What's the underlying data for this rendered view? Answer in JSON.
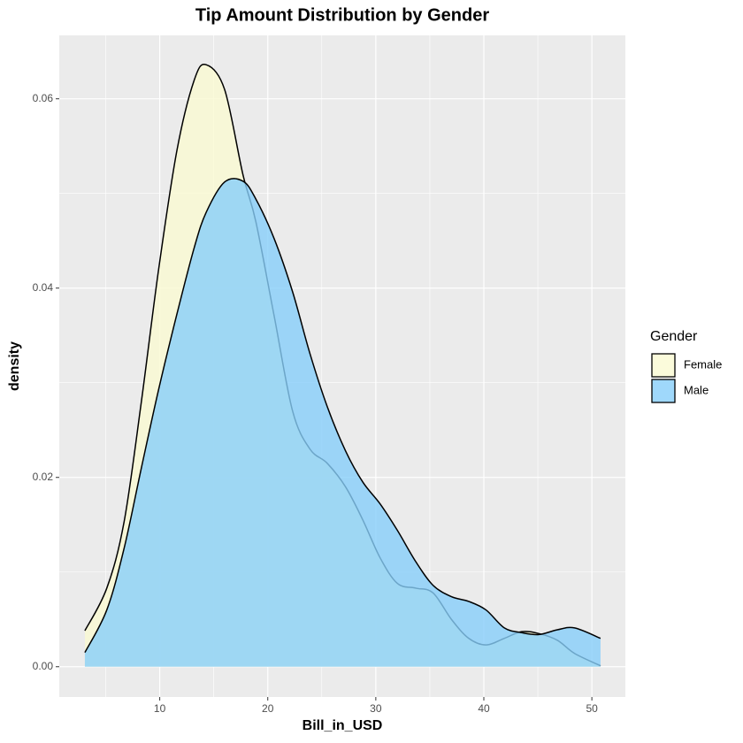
{
  "chart_data": {
    "type": "density",
    "title": "Tip Amount Distribution by Gender",
    "x_label": "Bill_in_USD",
    "y_label": "density",
    "legend_title": "Gender",
    "legend_position": "right",
    "x": [
      3.07,
      5.1,
      6.7,
      8.3,
      9.9,
      11.6,
      13.2,
      14.3,
      16,
      17.7,
      18.9,
      20.6,
      22.3,
      23.9,
      25.5,
      27.2,
      28.8,
      30.4,
      32,
      33.7,
      35.3,
      37,
      38.6,
      40.2,
      41.9,
      43.5,
      45.1,
      46.8,
      48.4,
      50.8
    ],
    "series": [
      {
        "name": "Female",
        "color": "#FAFAD2",
        "values": [
          0.0038,
          0.0083,
          0.0153,
          0.028,
          0.042,
          0.0546,
          0.062,
          0.0636,
          0.061,
          0.052,
          0.047,
          0.037,
          0.027,
          0.023,
          0.0215,
          0.019,
          0.0155,
          0.0115,
          0.0088,
          0.0083,
          0.0078,
          0.005,
          0.003,
          0.0023,
          0.003,
          0.0037,
          0.0035,
          0.0028,
          0.0014,
          0.0001
        ]
      },
      {
        "name": "Male",
        "color": "#87CEFA",
        "values": [
          0.0015,
          0.006,
          0.0125,
          0.021,
          0.0293,
          0.0373,
          0.0443,
          0.048,
          0.0512,
          0.0513,
          0.0494,
          0.0452,
          0.0396,
          0.0331,
          0.0275,
          0.0228,
          0.0195,
          0.0172,
          0.0144,
          0.0111,
          0.0086,
          0.0074,
          0.0069,
          0.006,
          0.0041,
          0.0036,
          0.0034,
          0.0039,
          0.0041,
          0.003
        ]
      }
    ],
    "xlim": [
      0.7,
      53.1
    ],
    "xticks": [
      10,
      20,
      30,
      40,
      50
    ],
    "ylim": [
      -0.0032,
      0.0667
    ],
    "yticks": [
      {
        "value": 0,
        "label": "0.00"
      },
      {
        "value": 0.02,
        "label": "0.02"
      },
      {
        "value": 0.04,
        "label": "0.04"
      },
      {
        "value": 0.06,
        "label": "0.06"
      }
    ],
    "grid": true
  }
}
